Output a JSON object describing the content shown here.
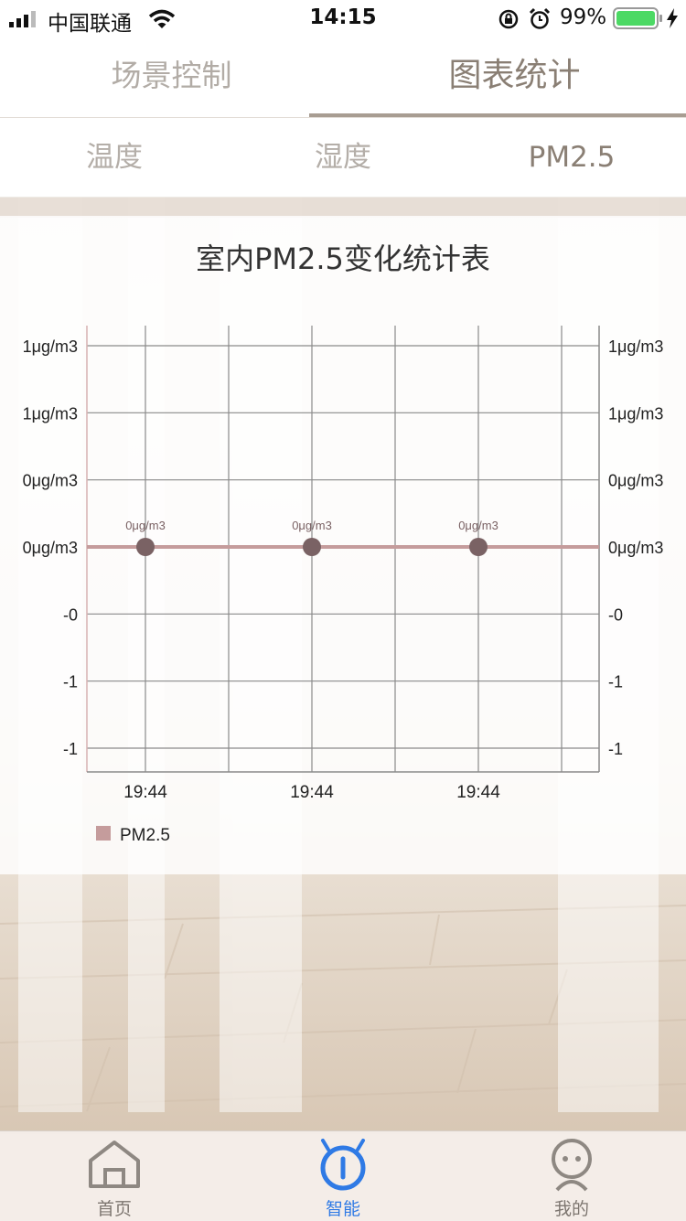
{
  "status_bar": {
    "carrier": "中国联通",
    "time": "14:15",
    "battery": "99%"
  },
  "top_tabs": [
    {
      "label": "场景控制",
      "active": false
    },
    {
      "label": "图表统计",
      "active": true
    }
  ],
  "sub_tabs": [
    {
      "label": "温度",
      "active": false
    },
    {
      "label": "湿度",
      "active": false
    },
    {
      "label": "PM2.5",
      "active": true
    }
  ],
  "chart": {
    "title": "室内PM2.5变化统计表"
  },
  "chart_data": {
    "type": "line",
    "title": "室内PM2.5变化统计表",
    "x": [
      "19:44",
      "19:44",
      "19:44"
    ],
    "series": [
      {
        "name": "PM2.5",
        "values": [
          0,
          0,
          0
        ],
        "point_labels": [
          "0μg/m3",
          "0μg/m3",
          "0μg/m3"
        ],
        "color": "#c59c9c",
        "point_color": "#7a6264"
      }
    ],
    "y_tick_labels": [
      "1μg/m3",
      "1μg/m3",
      "0μg/m3",
      "0μg/m3",
      "-0",
      "-1",
      "-1"
    ],
    "y_tick_values": [
      1.0,
      0.5,
      0.25,
      0,
      -0.25,
      -0.5,
      -1.0
    ],
    "ylim": [
      -1.1,
      1.1
    ],
    "grid": true,
    "legend_position": "bottom-left",
    "dual_y_axis": true
  },
  "bottom_nav": [
    {
      "label": "首页",
      "icon": "home-icon",
      "active": false
    },
    {
      "label": "智能",
      "icon": "smart-robot-icon",
      "active": true
    },
    {
      "label": "我的",
      "icon": "profile-icon",
      "active": false
    }
  ],
  "colors": {
    "accent_active_nav": "#2f7ae5",
    "tab_active": "#8a7f74",
    "tab_inactive": "#b2aca6",
    "series_line": "#c59c9c",
    "point": "#7a6264"
  }
}
